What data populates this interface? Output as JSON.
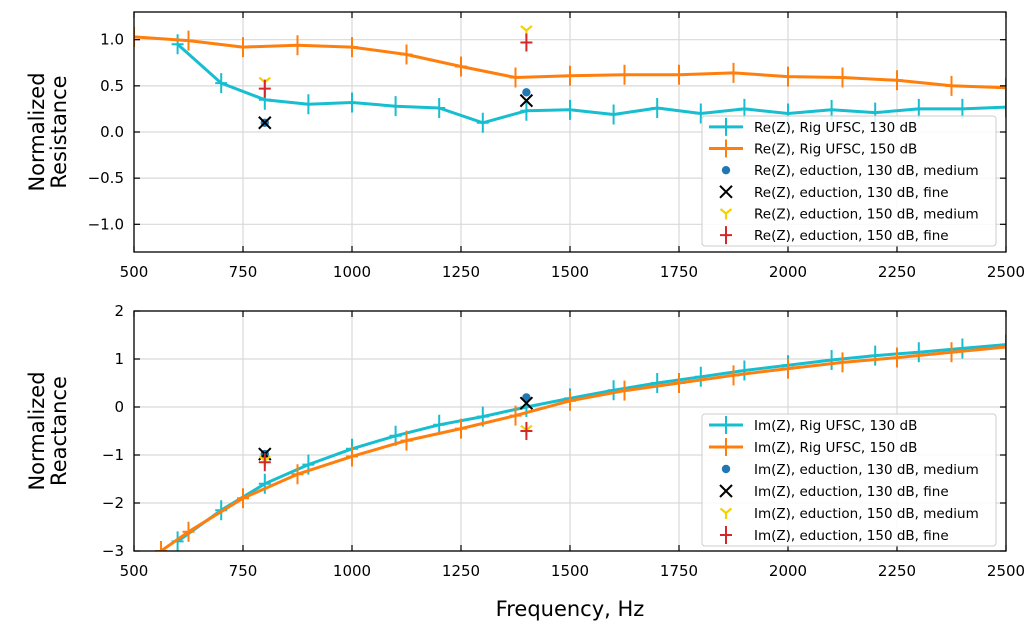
{
  "figure": {
    "xlabel": "Frequency, Hz"
  },
  "chart_data": [
    {
      "type": "line",
      "ylabel": [
        "Normalized",
        "Resistance"
      ],
      "xlim": [
        500,
        2500
      ],
      "ylim": [
        -1.3,
        1.3
      ],
      "xticks": [
        500,
        750,
        1000,
        1250,
        1500,
        1750,
        2000,
        2250,
        2500
      ],
      "yticks": [
        -1.0,
        -0.5,
        0.0,
        0.5,
        1.0
      ],
      "ytick_labels": [
        "−1.0",
        "−0.5",
        "0.0",
        "0.5",
        "1.0"
      ],
      "grid": true,
      "legend_position": "bottom-right",
      "series": [
        {
          "name": "Re(Z), Rig UFSC, 130 dB",
          "style": "line-plus",
          "color": "#17becf",
          "x": [
            600,
            700,
            800,
            900,
            1000,
            1100,
            1200,
            1300,
            1400,
            1500,
            1600,
            1700,
            1800,
            1900,
            2000,
            2100,
            2200,
            2300,
            2400,
            2500
          ],
          "y": [
            0.95,
            0.53,
            0.35,
            0.3,
            0.32,
            0.28,
            0.26,
            0.1,
            0.23,
            0.24,
            0.19,
            0.26,
            0.2,
            0.25,
            0.2,
            0.24,
            0.21,
            0.25,
            0.25,
            0.27
          ]
        },
        {
          "name": "Re(Z), Rig UFSC, 150 dB",
          "style": "line-plus",
          "color": "#ff7f0e",
          "x": [
            500,
            625,
            750,
            875,
            1000,
            1125,
            1250,
            1375,
            1500,
            1625,
            1750,
            1875,
            2000,
            2125,
            2250,
            2375,
            2500
          ],
          "y": [
            1.03,
            0.99,
            0.92,
            0.94,
            0.92,
            0.84,
            0.71,
            0.59,
            0.61,
            0.62,
            0.62,
            0.64,
            0.6,
            0.59,
            0.56,
            0.5,
            0.48
          ]
        },
        {
          "name": "Re(Z), eduction, 130 dB, medium",
          "style": "dot",
          "color": "#1f77b4",
          "x": [
            800,
            1400
          ],
          "y": [
            0.1,
            0.43
          ]
        },
        {
          "name": "Re(Z), eduction, 130 dB, fine",
          "style": "x",
          "color": "#000000",
          "x": [
            800,
            1400
          ],
          "y": [
            0.1,
            0.34
          ]
        },
        {
          "name": "Re(Z), eduction, 150 dB, medium",
          "style": "tri",
          "color": "#f5d100",
          "x": [
            800,
            1400
          ],
          "y": [
            0.54,
            1.1
          ]
        },
        {
          "name": "Re(Z), eduction, 150 dB, fine",
          "style": "plus",
          "color": "#d62728",
          "x": [
            800,
            1400
          ],
          "y": [
            0.47,
            0.97
          ]
        }
      ]
    },
    {
      "type": "line",
      "ylabel": [
        "Normalized",
        "Reactance"
      ],
      "xlim": [
        500,
        2500
      ],
      "ylim": [
        -3,
        2
      ],
      "xticks": [
        500,
        750,
        1000,
        1250,
        1500,
        1750,
        2000,
        2250,
        2500
      ],
      "yticks": [
        -3,
        -2,
        -1,
        0,
        1,
        2
      ],
      "ytick_labels": [
        "−3",
        "−2",
        "−1",
        "0",
        "1",
        "2"
      ],
      "grid": true,
      "legend_position": "bottom-right",
      "series": [
        {
          "name": "Im(Z), Rig UFSC, 130 dB",
          "style": "line-plus",
          "color": "#17becf",
          "x": [
            600,
            700,
            800,
            900,
            1000,
            1100,
            1200,
            1300,
            1400,
            1500,
            1600,
            1700,
            1800,
            1900,
            2000,
            2100,
            2200,
            2300,
            2400,
            2500
          ],
          "y": [
            -2.8,
            -2.15,
            -1.6,
            -1.2,
            -0.87,
            -0.6,
            -0.37,
            -0.2,
            0.0,
            0.18,
            0.35,
            0.5,
            0.63,
            0.76,
            0.87,
            0.98,
            1.07,
            1.14,
            1.22,
            1.3
          ]
        },
        {
          "name": "Im(Z), Rig UFSC, 150 dB",
          "style": "line-plus",
          "color": "#ff7f0e",
          "x": [
            562,
            625,
            750,
            875,
            1000,
            1125,
            1250,
            1375,
            1500,
            1625,
            1750,
            1875,
            2000,
            2125,
            2250,
            2375,
            2500
          ],
          "y": [
            -3.0,
            -2.6,
            -1.9,
            -1.4,
            -1.03,
            -0.7,
            -0.45,
            -0.18,
            0.13,
            0.34,
            0.5,
            0.66,
            0.8,
            0.93,
            1.03,
            1.14,
            1.25
          ]
        },
        {
          "name": "Im(Z), eduction, 130 dB, medium",
          "style": "dot",
          "color": "#1f77b4",
          "x": [
            800,
            1400
          ],
          "y": [
            -0.98,
            0.2
          ]
        },
        {
          "name": "Im(Z), eduction, 130 dB, fine",
          "style": "x",
          "color": "#000000",
          "x": [
            800,
            1400
          ],
          "y": [
            -0.98,
            0.08
          ]
        },
        {
          "name": "Im(Z), eduction, 150 dB, medium",
          "style": "tri",
          "color": "#f5d100",
          "x": [
            800,
            1400
          ],
          "y": [
            -1.12,
            -0.48
          ]
        },
        {
          "name": "Im(Z), eduction, 150 dB, fine",
          "style": "plus",
          "color": "#d62728",
          "x": [
            800,
            1400
          ],
          "y": [
            -1.15,
            -0.5
          ]
        }
      ]
    }
  ]
}
